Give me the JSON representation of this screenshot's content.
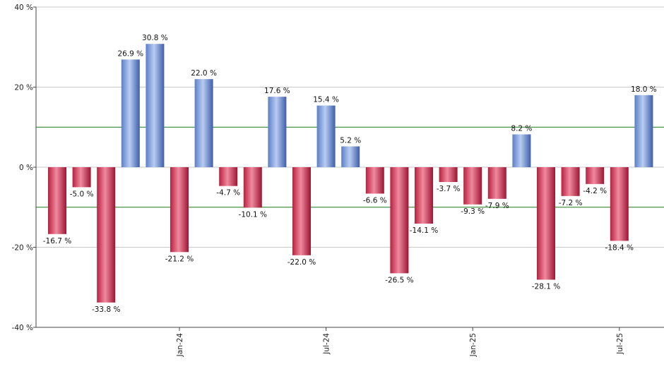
{
  "chart_data": {
    "type": "bar",
    "title": "",
    "xlabel": "",
    "ylabel": "",
    "ylim": [
      -40,
      40
    ],
    "ytick_values": [
      -40,
      -20,
      0,
      20,
      40
    ],
    "ytick_labels": [
      "-40 %",
      "-20 %",
      "0 %",
      "20 %",
      "40 %"
    ],
    "reference_lines": [
      10,
      -10
    ],
    "values": [
      -16.7,
      -5.0,
      -33.8,
      26.9,
      30.8,
      -21.2,
      22.0,
      -4.7,
      -10.1,
      17.6,
      -22.0,
      15.4,
      5.2,
      -6.6,
      -26.5,
      -14.1,
      -3.7,
      -9.3,
      -7.9,
      8.2,
      -28.1,
      -7.2,
      -4.2,
      -18.4,
      18.0
    ],
    "data_labels": [
      "-16.7 %",
      "-5.0 %",
      "-33.8 %",
      "26.9 %",
      "30.8 %",
      "-21.2 %",
      "22.0 %",
      "-4.7 %",
      "-10.1 %",
      "17.6 %",
      "-22.0 %",
      "15.4 %",
      "5.2 %",
      "-6.6 %",
      "-26.5 %",
      "-14.1 %",
      "-3.7 %",
      "-9.3 %",
      "-7.9 %",
      "8.2 %",
      "-28.1 %",
      "-7.2 %",
      "-4.2 %",
      "-18.4 %",
      "18.0 %"
    ],
    "x_tick_labels": [
      {
        "label": "Jan-24",
        "index": 5
      },
      {
        "label": "Jul-24",
        "index": 11
      },
      {
        "label": "Jan-25",
        "index": 17
      },
      {
        "label": "Jul-25",
        "index": 23
      }
    ],
    "grid": true,
    "colors": {
      "positive": "#7b9fe0",
      "negative": "#d83a5c",
      "reference_line": "#1a7a1a",
      "grid": "#c8c8c8",
      "axis": "#444444"
    }
  }
}
